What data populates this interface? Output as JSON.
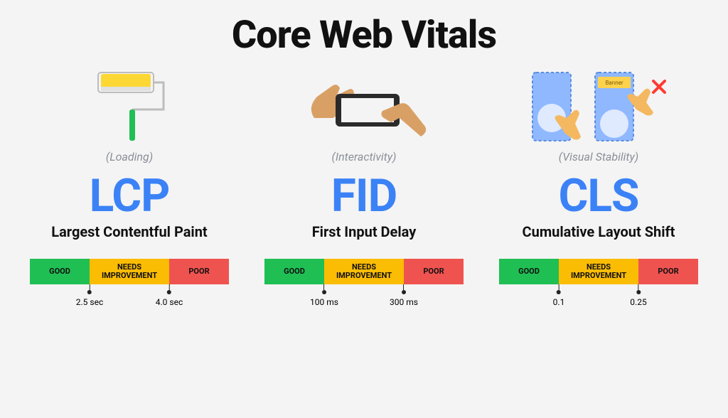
{
  "title": "Core Web Vitals",
  "title_fontsize": 54,
  "title_color": "#111111",
  "background_color": "#f4f4f4",
  "category_color": "#8a8f98",
  "abbrev_color": "#3b82f6",
  "abbrev_fontsize": 64,
  "fullname_color": "#111111",
  "fullname_fontsize": 20,
  "bar_segments": {
    "good": {
      "label": "GOOD",
      "color": "#1fbf54",
      "width_pct": 30
    },
    "needs": {
      "label": "NEEDS IMPROVEMENT",
      "color": "#fbbc04",
      "width_pct": 40
    },
    "poor": {
      "label": "POOR",
      "color": "#ef5350",
      "width_pct": 30
    }
  },
  "bar_label_color": "#111111",
  "tick_color": "#222222",
  "icons": {
    "lcp": {
      "name": "paint-roller-icon",
      "colors": {
        "roller": "#fdd835",
        "tray": "#e0e0e0",
        "handle": "#1fbf54",
        "outline": "#bdbdbd"
      }
    },
    "fid": {
      "name": "hands-phone-icon",
      "colors": {
        "hand": "#d9a066",
        "phone_body": "#2a2a2a",
        "screen": "#f4f4f4"
      }
    },
    "cls": {
      "name": "layout-shift-icon",
      "colors": {
        "panel": "#8fb8ff",
        "panel_border": "#5a8de0",
        "banner": "#ffd24d",
        "hand": "#f4b860",
        "x": "#ff3b30",
        "img": "#dfeaff"
      }
    }
  },
  "metrics": [
    {
      "key": "lcp",
      "category": "(Loading)",
      "abbrev": "LCP",
      "fullname": "Largest Contentful Paint",
      "thresholds": [
        {
          "pos_pct": 30,
          "label": "2.5 sec"
        },
        {
          "pos_pct": 70,
          "label": "4.0 sec"
        }
      ]
    },
    {
      "key": "fid",
      "category": "(Interactivity)",
      "abbrev": "FID",
      "fullname": "First Input Delay",
      "thresholds": [
        {
          "pos_pct": 30,
          "label": "100 ms"
        },
        {
          "pos_pct": 70,
          "label": "300 ms"
        }
      ]
    },
    {
      "key": "cls",
      "category": "(Visual Stability)",
      "abbrev": "CLS",
      "fullname": "Cumulative Layout Shift",
      "thresholds": [
        {
          "pos_pct": 30,
          "label": "0.1"
        },
        {
          "pos_pct": 70,
          "label": "0.25"
        }
      ]
    }
  ]
}
